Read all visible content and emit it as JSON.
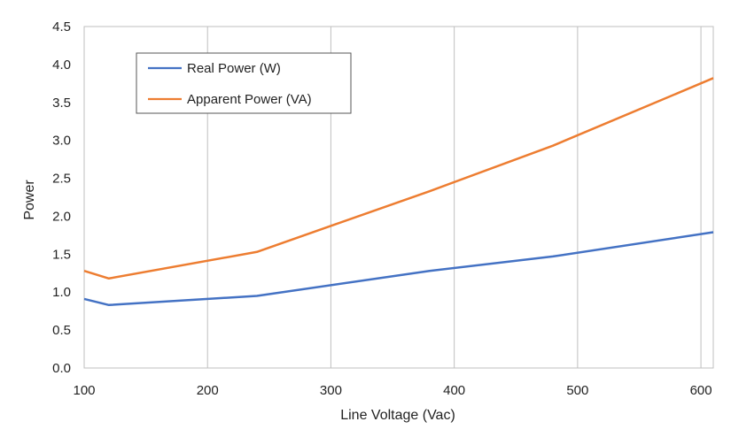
{
  "chart_data": {
    "type": "line",
    "title": "",
    "xlabel": "Line Voltage (Vac)",
    "ylabel": "Power",
    "xlim": [
      100,
      610
    ],
    "ylim": [
      0,
      4.5
    ],
    "x_ticks": [
      "100",
      "200",
      "300",
      "400",
      "500",
      "600"
    ],
    "y_ticks": [
      "0.0",
      "0.5",
      "1.0",
      "1.5",
      "2.0",
      "2.5",
      "3.0",
      "3.5",
      "4.0",
      "4.5"
    ],
    "grid": "vertical major lines",
    "legend_position": "top-left",
    "series": [
      {
        "name": "Real Power (W)",
        "color": "#4472C4",
        "points": [
          [
            100,
            0.91
          ],
          [
            120,
            0.83
          ],
          [
            240,
            0.95
          ],
          [
            380,
            1.28
          ],
          [
            480,
            1.47
          ],
          [
            610,
            1.79
          ]
        ]
      },
      {
        "name": "Apparent Power (VA)",
        "color": "#ED7D31",
        "points": [
          [
            100,
            1.28
          ],
          [
            120,
            1.18
          ],
          [
            240,
            1.53
          ],
          [
            380,
            2.33
          ],
          [
            480,
            2.93
          ],
          [
            610,
            3.82
          ]
        ]
      }
    ]
  }
}
